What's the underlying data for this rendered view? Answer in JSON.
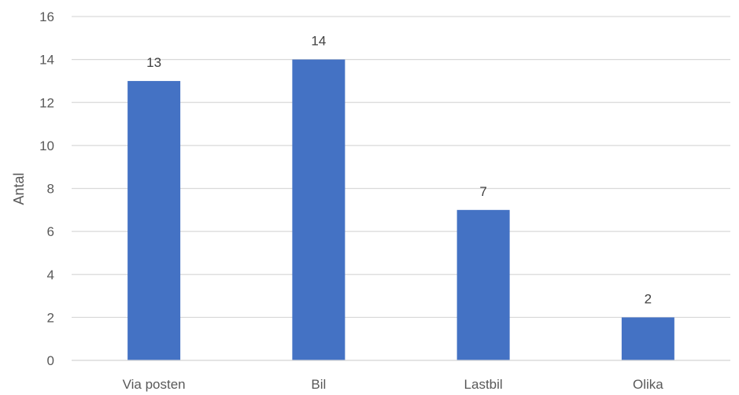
{
  "chart_data": {
    "type": "bar",
    "categories": [
      "Via posten",
      "Bil",
      "Lastbil",
      "Olika"
    ],
    "values": [
      13,
      14,
      7,
      2
    ],
    "title": "",
    "xlabel": "",
    "ylabel": "Antal",
    "ylim": [
      0,
      16
    ],
    "yticks": [
      0,
      2,
      4,
      6,
      8,
      10,
      12,
      14,
      16
    ],
    "grid": true,
    "legend": "none",
    "bar_color": "#4472C4",
    "grid_color": "#D9D9D9"
  }
}
